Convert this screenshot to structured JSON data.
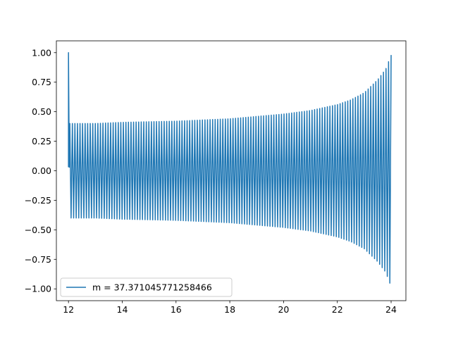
{
  "chart_data": {
    "type": "line",
    "title": "",
    "xlabel": "",
    "ylabel": "",
    "xlim": [
      11.55,
      24.55
    ],
    "ylim": [
      -1.1,
      1.1
    ],
    "x_ticks": [
      12,
      14,
      16,
      18,
      20,
      22,
      24
    ],
    "x_tick_labels": [
      "12",
      "14",
      "16",
      "18",
      "20",
      "22",
      "24"
    ],
    "y_ticks": [
      1.0,
      0.75,
      0.5,
      0.25,
      0.0,
      -0.25,
      -0.5,
      -0.75,
      -1.0
    ],
    "y_tick_labels": [
      "1.00",
      "0.75",
      "0.50",
      "0.25",
      "0.00",
      "−0.25",
      "−0.50",
      "−0.75",
      "−1.00"
    ],
    "grid": false,
    "legend_position": "lower left",
    "series": [
      {
        "name": "m = 37.371045771258466",
        "color": "#1f77b4",
        "x_range": [
          12,
          24
        ],
        "initial_points": [
          [
            12.0,
            0.03
          ],
          [
            12.0,
            1.0
          ],
          [
            12.03,
            0.03
          ]
        ],
        "oscillation_cycles": 126,
        "envelope": {
          "x": [
            12.05,
            13,
            14,
            15,
            16,
            17,
            18,
            19,
            20,
            21,
            22,
            22.5,
            23,
            23.5,
            23.8,
            24.0
          ],
          "y": [
            0.4,
            0.4,
            0.41,
            0.415,
            0.42,
            0.43,
            0.44,
            0.46,
            0.48,
            0.51,
            0.56,
            0.6,
            0.66,
            0.77,
            0.86,
            0.98
          ]
        }
      }
    ]
  }
}
